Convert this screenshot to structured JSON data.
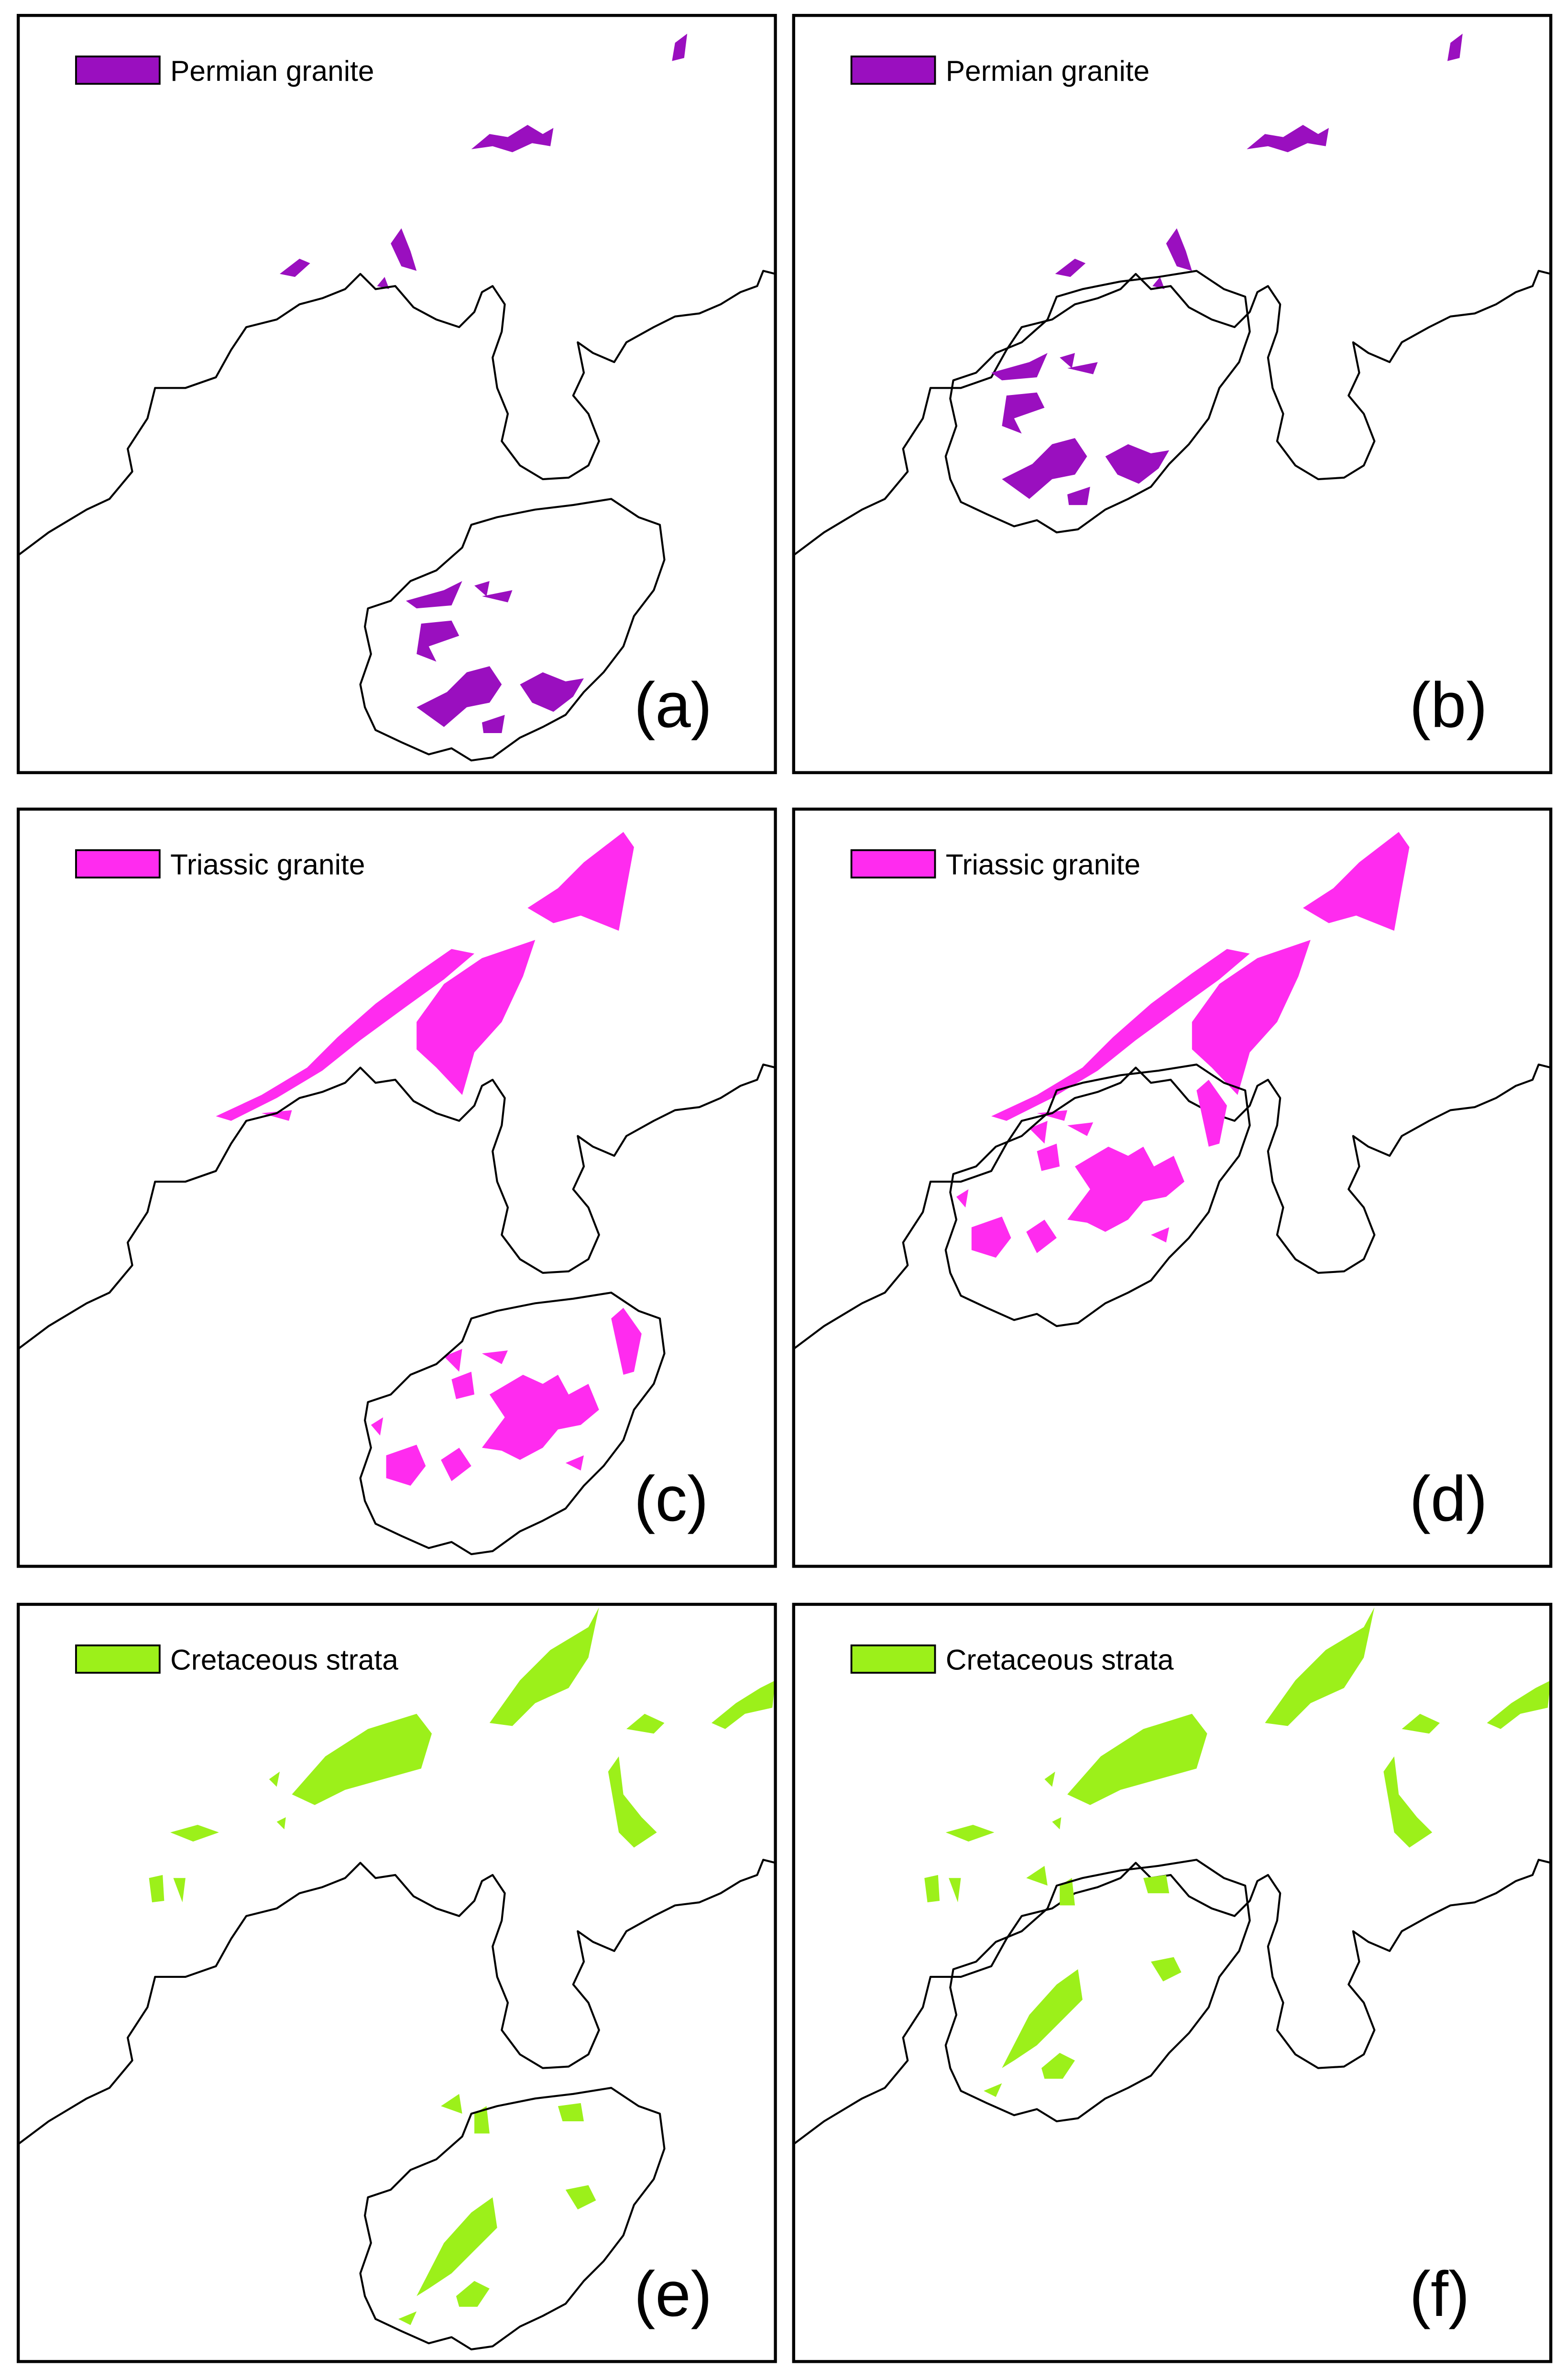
{
  "panels": [
    {
      "legend": "Permian granite",
      "label": "(a)"
    },
    {
      "legend": "Permian granite",
      "label": "(b)"
    },
    {
      "legend": "Triassic granite",
      "label": "(c)"
    },
    {
      "legend": "Triassic granite",
      "label": "(d)"
    },
    {
      "legend": "Cretaceous strata",
      "label": "(e)"
    },
    {
      "legend": "Cretaceous strata",
      "label": "(f)"
    }
  ]
}
